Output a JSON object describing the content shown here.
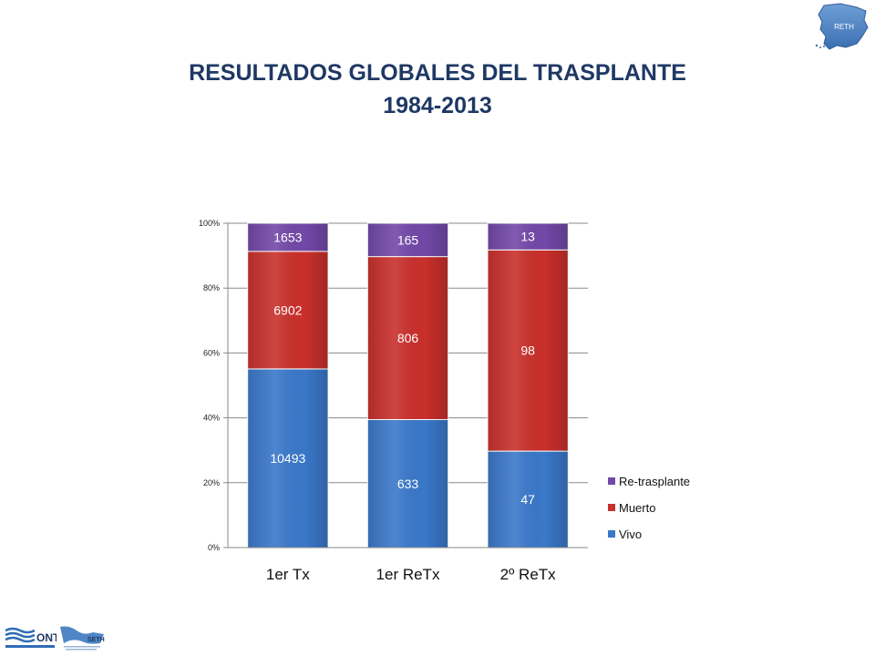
{
  "slide": {
    "title_line1": "RESULTADOS GLOBALES DEL TRASPLANTE",
    "title_line2": "1984-2013"
  },
  "logos": {
    "top_right": "RETH",
    "bottom_left_1": "ONT",
    "bottom_left_2": "SETH"
  },
  "chart_data": {
    "type": "bar",
    "stacked": "percent",
    "categories": [
      "1er Tx",
      "1er ReTx",
      "2º ReTx"
    ],
    "series": [
      {
        "name": "Vivo",
        "values": [
          10493,
          633,
          47
        ],
        "color": "#3a78c9"
      },
      {
        "name": "Muerto",
        "values": [
          6902,
          806,
          98
        ],
        "color": "#c9302c"
      },
      {
        "name": "Re-trasplante",
        "values": [
          1653,
          165,
          13
        ],
        "color": "#7348a8"
      }
    ],
    "y_ticks": [
      "0%",
      "20%",
      "40%",
      "60%",
      "80%",
      "100%"
    ],
    "ylim": [
      0,
      100
    ],
    "grid": true,
    "legend_position": "right"
  }
}
